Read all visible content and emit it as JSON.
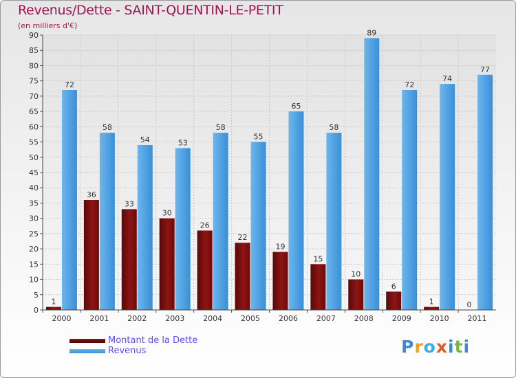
{
  "header": {
    "title": "Revenus/Dette - SAINT-QUENTIN-LE-PETIT",
    "subtitle": "(en milliers d'€)"
  },
  "chart_data": {
    "type": "bar",
    "title": "Revenus/Dette - SAINT-QUENTIN-LE-PETIT",
    "ylabel": "(en milliers d'€)",
    "xlabel": "",
    "ylim": [
      0,
      90
    ],
    "ytick_step": 5,
    "grid": true,
    "categories": [
      "2000",
      "2001",
      "2002",
      "2003",
      "2004",
      "2005",
      "2006",
      "2007",
      "2008",
      "2009",
      "2010",
      "2011"
    ],
    "series": [
      {
        "name": "Montant de la Dette",
        "color": "#7a0d0d",
        "values": [
          1,
          36,
          33,
          30,
          26,
          22,
          19,
          15,
          10,
          6,
          1,
          0
        ]
      },
      {
        "name": "Revenus",
        "color": "#4fa3e3",
        "values": [
          72,
          58,
          54,
          53,
          58,
          55,
          65,
          58,
          89,
          72,
          74,
          77
        ]
      }
    ]
  },
  "legend": {
    "items": [
      {
        "label": "Montant de la Dette",
        "color": "#7a0d0d"
      },
      {
        "label": "Revenus",
        "color": "#4fa3e3"
      }
    ]
  },
  "logo": {
    "text": "Proxiti",
    "letter_colors": [
      "#3b8bd4",
      "#f0a020",
      "#3bb0e0",
      "#e25a2a",
      "#2e8fd0",
      "#79b83a",
      "#3b8bd4"
    ]
  }
}
